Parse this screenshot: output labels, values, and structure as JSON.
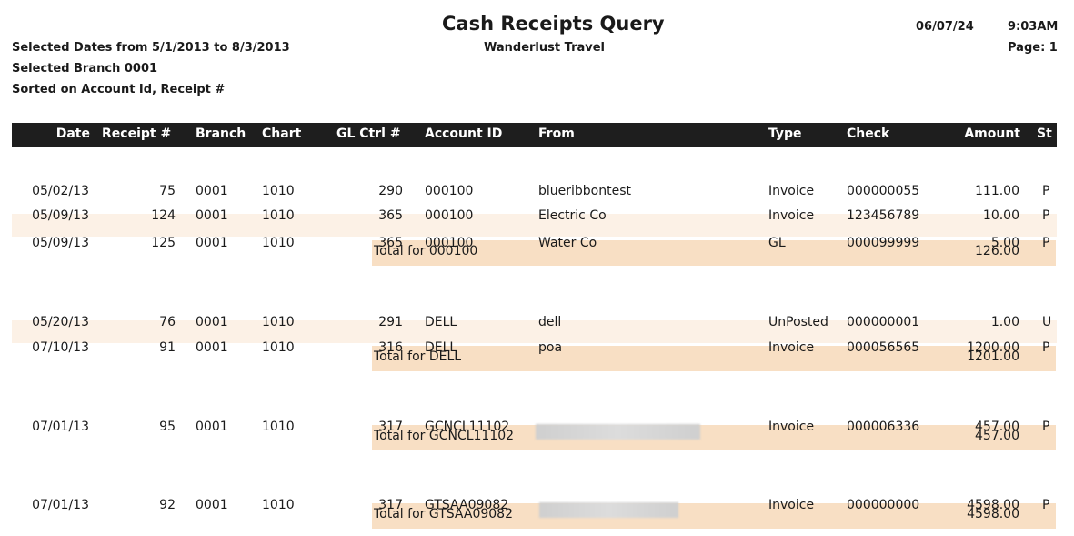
{
  "report": {
    "title": "Cash Receipts Query",
    "company": "Wanderlust Travel",
    "print_date": "06/07/24",
    "print_time": "9:03AM",
    "page": "Page: 1",
    "criteria": [
      "Selected Dates from 5/1/2013 to 8/3/2013",
      "Selected Branch 0001",
      "Sorted on Account Id, Receipt #"
    ]
  },
  "columns": {
    "date": "Date",
    "receipt": "Receipt #",
    "branch": "Branch",
    "chart": "Chart",
    "glctrl": "GL Ctrl #",
    "account": "Account ID",
    "from": "From",
    "type": "Type",
    "check": "Check",
    "amount": "Amount",
    "st": "St"
  },
  "rows": [
    {
      "date": "05/02/13",
      "receipt": "75",
      "branch": "0001",
      "chart": "1010",
      "glctrl": "290",
      "account": "000100",
      "from": "blueribbontest",
      "type": "Invoice",
      "check": "000000055",
      "amount": "111.00",
      "st": "P"
    },
    {
      "date": "05/09/13",
      "receipt": "124",
      "branch": "0001",
      "chart": "1010",
      "glctrl": "365",
      "account": "000100",
      "from": "Electric Co",
      "type": "Invoice",
      "check": "123456789",
      "amount": "10.00",
      "st": "P"
    },
    {
      "date": "05/09/13",
      "receipt": "125",
      "branch": "0001",
      "chart": "1010",
      "glctrl": "365",
      "account": "000100",
      "from": "Water Co",
      "type": "GL",
      "check": "000099999",
      "amount": "5.00",
      "st": "P"
    },
    {
      "date": "05/20/13",
      "receipt": "76",
      "branch": "0001",
      "chart": "1010",
      "glctrl": "291",
      "account": "DELL",
      "from": "dell",
      "type": "UnPosted",
      "check": "000000001",
      "amount": "1.00",
      "st": "U"
    },
    {
      "date": "07/10/13",
      "receipt": "91",
      "branch": "0001",
      "chart": "1010",
      "glctrl": "316",
      "account": "DELL",
      "from": "poa",
      "type": "Invoice",
      "check": "000056565",
      "amount": "1200.00",
      "st": "P"
    },
    {
      "date": "07/01/13",
      "receipt": "95",
      "branch": "0001",
      "chart": "1010",
      "glctrl": "317",
      "account": "GCNCL11102",
      "from": "",
      "type": "Invoice",
      "check": "000006336",
      "amount": "457.00",
      "st": "P"
    },
    {
      "date": "07/01/13",
      "receipt": "92",
      "branch": "0001",
      "chart": "1010",
      "glctrl": "317",
      "account": "GTSAA09082",
      "from": "",
      "type": "Invoice",
      "check": "000000000",
      "amount": "4598.00",
      "st": "P"
    }
  ],
  "totals": [
    {
      "label": "Total for 000100",
      "amount": "126.00"
    },
    {
      "label": "Total for DELL",
      "amount": "1201.00"
    },
    {
      "label": "Total for GCNCL11102",
      "amount": "457.00"
    },
    {
      "label": "Total for GTSAA09082",
      "amount": "4598.00"
    }
  ]
}
